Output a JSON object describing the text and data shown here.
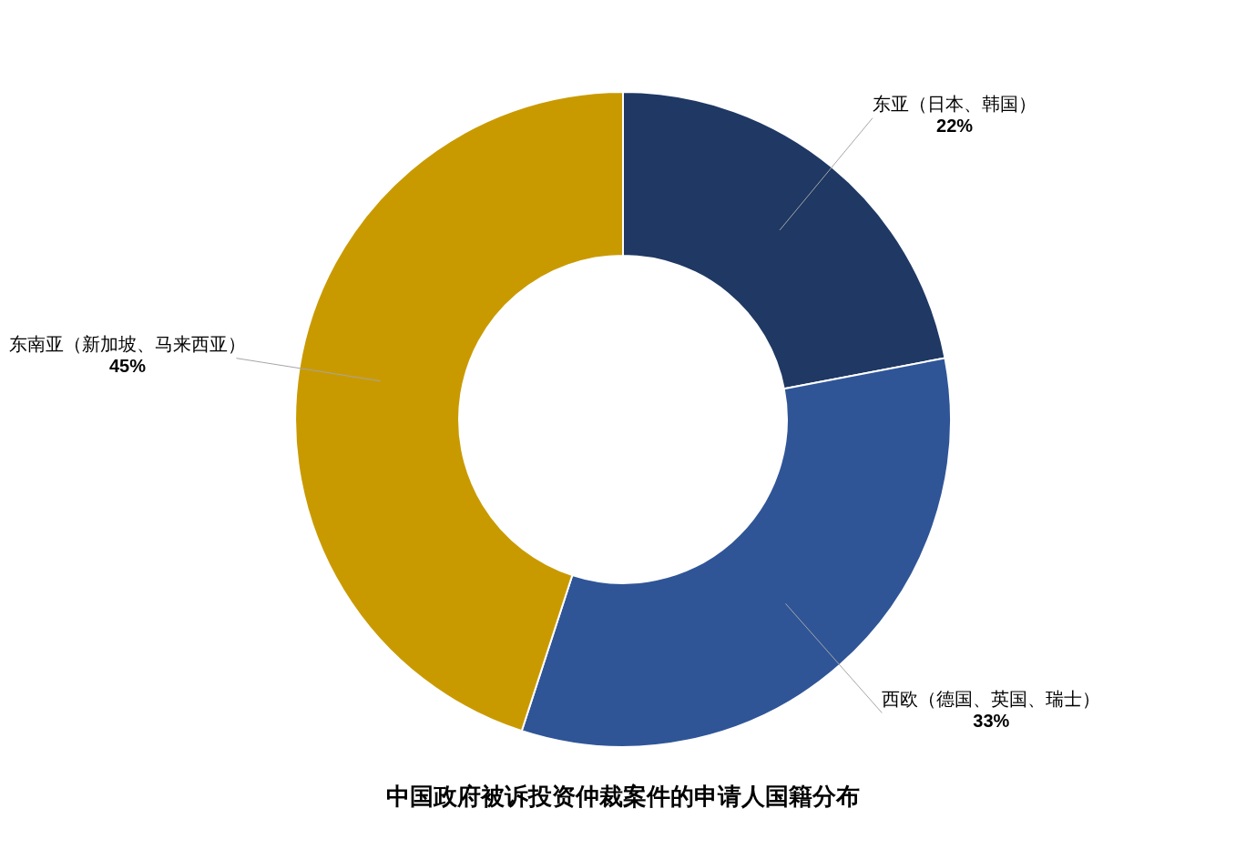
{
  "chart_data": {
    "type": "donut",
    "title": "中国政府被诉投资仲裁案件的申请人国籍分布",
    "categories": [
      "东亚（日本、韩国）",
      "西欧（德国、英国、瑞士）",
      "东南亚（新加坡、马来西亚）"
    ],
    "values": [
      22,
      33,
      45
    ],
    "colors": [
      "#1f3864",
      "#2f5597",
      "#c99a00"
    ],
    "value_labels": [
      "22%",
      "33%",
      "45%"
    ],
    "legend": false
  }
}
